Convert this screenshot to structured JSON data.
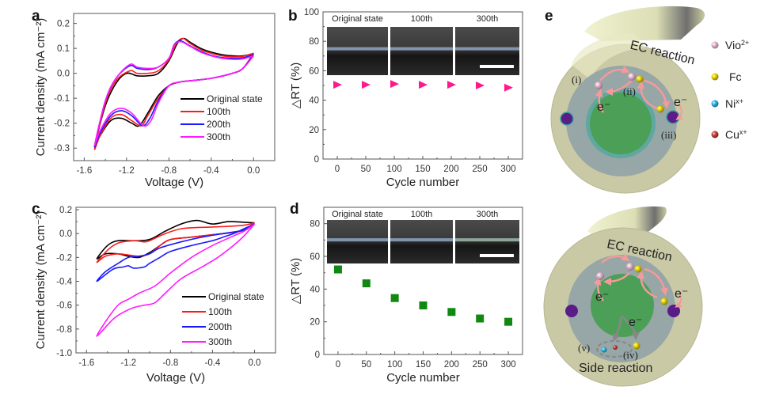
{
  "figure": {
    "panel_labels": [
      "a",
      "b",
      "c",
      "d",
      "e"
    ]
  },
  "chart_data": [
    {
      "panel": "a",
      "type": "line",
      "title": "",
      "xlabel": "Voltage (V)",
      "ylabel": "Current density (mA cm⁻²)",
      "xlim": [
        -1.7,
        0.2
      ],
      "ylim": [
        -0.35,
        0.24
      ],
      "xticks": [
        -1.6,
        -1.2,
        -0.8,
        -0.4,
        0.0
      ],
      "xtick_labels": [
        "-1.6",
        "-1.2",
        "-0.8",
        "-0.4",
        "0.0"
      ],
      "yticks": [
        0.2,
        0.1,
        0.0,
        -0.1,
        -0.2,
        -0.3
      ],
      "ytick_labels": [
        "0.2",
        "0.1",
        "0.0",
        "-0.1",
        "-0.2",
        "-0.3"
      ],
      "legend_position": "bottom-right",
      "series": [
        {
          "name": "Original state",
          "color": "#000000",
          "x": [
            0.0,
            -0.1,
            -0.2,
            -0.3,
            -0.4,
            -0.5,
            -0.6,
            -0.66,
            -0.72,
            -0.8,
            -0.9,
            -1.0,
            -1.1,
            -1.2,
            -1.3,
            -1.4,
            -1.5,
            -1.45,
            -1.35,
            -1.25,
            -1.15,
            -1.08,
            -1.0,
            -0.9,
            -0.8,
            -0.7,
            -0.6,
            -0.4,
            -0.2,
            -0.1,
            0.0
          ],
          "y": [
            0.08,
            0.07,
            0.07,
            0.075,
            0.085,
            0.1,
            0.125,
            0.14,
            0.12,
            0.05,
            0.0,
            -0.01,
            -0.01,
            0.0,
            -0.04,
            -0.13,
            -0.29,
            -0.25,
            -0.19,
            -0.18,
            -0.2,
            -0.21,
            -0.16,
            -0.09,
            -0.05,
            -0.035,
            -0.03,
            -0.02,
            0.0,
            0.02,
            0.08
          ]
        },
        {
          "name": "100th",
          "color": "#ff1a1a",
          "x": [
            0.0,
            -0.1,
            -0.2,
            -0.3,
            -0.4,
            -0.5,
            -0.6,
            -0.67,
            -0.73,
            -0.8,
            -0.9,
            -1.0,
            -1.1,
            -1.17,
            -1.3,
            -1.4,
            -1.5,
            -1.45,
            -1.35,
            -1.25,
            -1.15,
            -1.06,
            -1.0,
            -0.9,
            -0.8,
            -0.7,
            -0.6,
            -0.4,
            -0.2,
            -0.1,
            0.0
          ],
          "y": [
            0.08,
            0.068,
            0.066,
            0.07,
            0.08,
            0.095,
            0.12,
            0.14,
            0.12,
            0.055,
            0.01,
            0.0,
            0.0,
            0.01,
            -0.03,
            -0.12,
            -0.3,
            -0.25,
            -0.18,
            -0.165,
            -0.19,
            -0.21,
            -0.17,
            -0.1,
            -0.05,
            -0.035,
            -0.03,
            -0.02,
            0.0,
            0.02,
            0.08
          ]
        },
        {
          "name": "200th",
          "color": "#1a1aff",
          "x": [
            0.0,
            -0.1,
            -0.2,
            -0.3,
            -0.4,
            -0.5,
            -0.6,
            -0.69,
            -0.75,
            -0.8,
            -0.9,
            -1.0,
            -1.1,
            -1.17,
            -1.3,
            -1.4,
            -1.5,
            -1.45,
            -1.35,
            -1.25,
            -1.15,
            -1.05,
            -0.98,
            -0.9,
            -0.8,
            -0.7,
            -0.6,
            -0.4,
            -0.2,
            -0.1,
            0.0
          ],
          "y": [
            0.075,
            0.062,
            0.06,
            0.063,
            0.072,
            0.088,
            0.11,
            0.13,
            0.115,
            0.06,
            0.025,
            0.015,
            0.02,
            0.03,
            -0.02,
            -0.11,
            -0.29,
            -0.24,
            -0.17,
            -0.15,
            -0.17,
            -0.21,
            -0.18,
            -0.11,
            -0.05,
            -0.035,
            -0.03,
            -0.02,
            0.0,
            0.02,
            0.075
          ]
        },
        {
          "name": "300th",
          "color": "#ff1aff",
          "x": [
            0.0,
            -0.1,
            -0.2,
            -0.3,
            -0.4,
            -0.5,
            -0.6,
            -0.69,
            -0.75,
            -0.8,
            -0.9,
            -1.0,
            -1.1,
            -1.17,
            -1.3,
            -1.4,
            -1.5,
            -1.45,
            -1.35,
            -1.25,
            -1.15,
            -1.04,
            -0.97,
            -0.9,
            -0.8,
            -0.7,
            -0.6,
            -0.4,
            -0.2,
            -0.1,
            0.0
          ],
          "y": [
            0.07,
            0.058,
            0.056,
            0.06,
            0.07,
            0.085,
            0.108,
            0.127,
            0.112,
            0.06,
            0.025,
            0.02,
            0.025,
            0.035,
            -0.02,
            -0.11,
            -0.285,
            -0.23,
            -0.16,
            -0.14,
            -0.16,
            -0.21,
            -0.19,
            -0.12,
            -0.05,
            -0.035,
            -0.03,
            -0.02,
            0.0,
            0.02,
            0.07
          ]
        }
      ]
    },
    {
      "panel": "b",
      "type": "scatter",
      "title": "",
      "xlabel": "Cycle number",
      "ylabel": "△RT (%)",
      "xlim": [
        -25,
        325
      ],
      "ylim": [
        0,
        100
      ],
      "xticks": [
        0,
        50,
        100,
        150,
        200,
        250,
        300
      ],
      "xtick_labels": [
        "0",
        "50",
        "100",
        "150",
        "200",
        "250",
        "300"
      ],
      "yticks": [
        0,
        20,
        40,
        60,
        80,
        100
      ],
      "ytick_labels": [
        "0",
        "20",
        "40",
        "60",
        "80",
        "100"
      ],
      "marker": "triangle-right",
      "color": "#ff1a8c",
      "x": [
        0,
        50,
        100,
        150,
        200,
        250,
        300
      ],
      "y": [
        50.5,
        50.5,
        51,
        50.5,
        50.5,
        50,
        48.5
      ],
      "inset_labels": [
        "Original state",
        "100th",
        "300th"
      ]
    },
    {
      "panel": "c",
      "type": "line",
      "title": "",
      "xlabel": "Voltage (V)",
      "ylabel": "Current density (mA cm⁻²)",
      "xlim": [
        -1.7,
        0.2
      ],
      "ylim": [
        -1.0,
        0.22
      ],
      "xticks": [
        -1.6,
        -1.2,
        -0.8,
        -0.4,
        0.0
      ],
      "xtick_labels": [
        "-1.6",
        "-1.2",
        "-0.8",
        "-0.4",
        "0.0"
      ],
      "yticks": [
        0.2,
        0.0,
        -0.2,
        -0.4,
        -0.6,
        -0.8,
        -1.0
      ],
      "ytick_labels": [
        "0.2",
        "0.0",
        "-0.2",
        "-0.4",
        "-0.6",
        "-0.8",
        "-1.0"
      ],
      "legend_position": "bottom-right",
      "series": [
        {
          "name": "Original state",
          "color": "#000000",
          "x": [
            0.0,
            -0.1,
            -0.25,
            -0.4,
            -0.55,
            -0.7,
            -0.85,
            -1.0,
            -1.15,
            -1.3,
            -1.4,
            -1.5,
            -1.42,
            -1.3,
            -1.2,
            -1.1,
            -1.0,
            -0.9,
            -0.8,
            -0.6,
            -0.4,
            -0.2,
            -0.1,
            0.0
          ],
          "y": [
            0.09,
            0.095,
            0.1,
            0.08,
            0.11,
            0.08,
            0.02,
            -0.05,
            -0.06,
            -0.06,
            -0.1,
            -0.21,
            -0.17,
            -0.17,
            -0.19,
            -0.2,
            -0.16,
            -0.1,
            -0.05,
            -0.03,
            -0.01,
            0.01,
            0.03,
            0.09
          ]
        },
        {
          "name": "100th",
          "color": "#ff1a1a",
          "x": [
            0.0,
            -0.1,
            -0.25,
            -0.4,
            -0.55,
            -0.7,
            -0.85,
            -1.0,
            -1.05,
            -1.15,
            -1.3,
            -1.4,
            -1.5,
            -1.42,
            -1.3,
            -1.2,
            -1.1,
            -1.0,
            -0.9,
            -0.8,
            -0.6,
            -0.4,
            -0.2,
            -0.1,
            0.0
          ],
          "y": [
            0.09,
            0.07,
            0.06,
            0.055,
            0.05,
            0.04,
            0.0,
            -0.06,
            -0.07,
            -0.06,
            -0.08,
            -0.14,
            -0.24,
            -0.19,
            -0.17,
            -0.18,
            -0.19,
            -0.17,
            -0.1,
            -0.05,
            -0.03,
            -0.01,
            0.01,
            0.03,
            0.09
          ]
        },
        {
          "name": "200th",
          "color": "#1a1aff",
          "x": [
            0.0,
            -0.1,
            -0.2,
            -0.3,
            -0.4,
            -0.6,
            -0.8,
            -0.9,
            -1.0,
            -1.05,
            -1.15,
            -1.2,
            -1.25,
            -1.35,
            -1.5,
            -1.42,
            -1.3,
            -1.2,
            -1.1,
            -1.0,
            -0.9,
            -0.7,
            -0.5,
            -0.3,
            -0.1,
            0.0
          ],
          "y": [
            0.08,
            0.04,
            0.0,
            -0.03,
            -0.06,
            -0.1,
            -0.15,
            -0.2,
            -0.25,
            -0.28,
            -0.29,
            -0.27,
            -0.28,
            -0.3,
            -0.4,
            -0.32,
            -0.25,
            -0.2,
            -0.19,
            -0.17,
            -0.12,
            -0.07,
            -0.03,
            0.0,
            0.03,
            0.08
          ]
        },
        {
          "name": "300th",
          "color": "#ff1aff",
          "x": [
            0.0,
            -0.1,
            -0.2,
            -0.35,
            -0.5,
            -0.7,
            -0.85,
            -0.95,
            -1.05,
            -1.15,
            -1.25,
            -1.35,
            -1.5,
            -1.42,
            -1.3,
            -1.2,
            -1.1,
            -0.95,
            -0.8,
            -0.6,
            -0.4,
            -0.2,
            -0.1,
            0.0
          ],
          "y": [
            0.08,
            -0.02,
            -0.1,
            -0.2,
            -0.28,
            -0.38,
            -0.5,
            -0.58,
            -0.6,
            -0.62,
            -0.66,
            -0.72,
            -0.86,
            -0.74,
            -0.6,
            -0.55,
            -0.5,
            -0.44,
            -0.33,
            -0.2,
            -0.1,
            -0.02,
            0.02,
            0.08
          ]
        }
      ]
    },
    {
      "panel": "d",
      "type": "scatter",
      "title": "",
      "xlabel": "Cycle number",
      "ylabel": "△RT (%)",
      "xlim": [
        -25,
        325
      ],
      "ylim": [
        0,
        90
      ],
      "xticks": [
        0,
        50,
        100,
        150,
        200,
        250,
        300
      ],
      "xtick_labels": [
        "0",
        "50",
        "100",
        "150",
        "200",
        "250",
        "300"
      ],
      "yticks": [
        0,
        20,
        40,
        60,
        80
      ],
      "ytick_labels": [
        "0",
        "20",
        "40",
        "60",
        "80"
      ],
      "marker": "square",
      "color": "#118811",
      "x": [
        0,
        50,
        100,
        150,
        200,
        250,
        300
      ],
      "y": [
        52,
        43.5,
        34.5,
        30,
        26,
        22,
        20
      ],
      "inset_labels": [
        "Original state",
        "100th",
        "300th"
      ]
    }
  ],
  "diagram": {
    "panel": "e",
    "top": {
      "title": "EC reaction",
      "labels": [
        "(i)",
        "(ii)",
        "(iii)"
      ],
      "electron_label": "e⁻"
    },
    "bottom": {
      "title": "EC reaction",
      "side_title": "Side reaction",
      "labels": [
        "(iv)",
        "(v)"
      ],
      "electron_label": "e⁻"
    },
    "key": [
      {
        "label": "Vio",
        "sup": "2+",
        "color": "#d4a8c0"
      },
      {
        "label": "Fc",
        "sup": "",
        "color": "#e8d400"
      },
      {
        "label": "Ni",
        "sup": "x+",
        "color": "#30a8d8"
      },
      {
        "label": "Cu",
        "sup": "x+",
        "color": "#c83c3c"
      }
    ]
  }
}
